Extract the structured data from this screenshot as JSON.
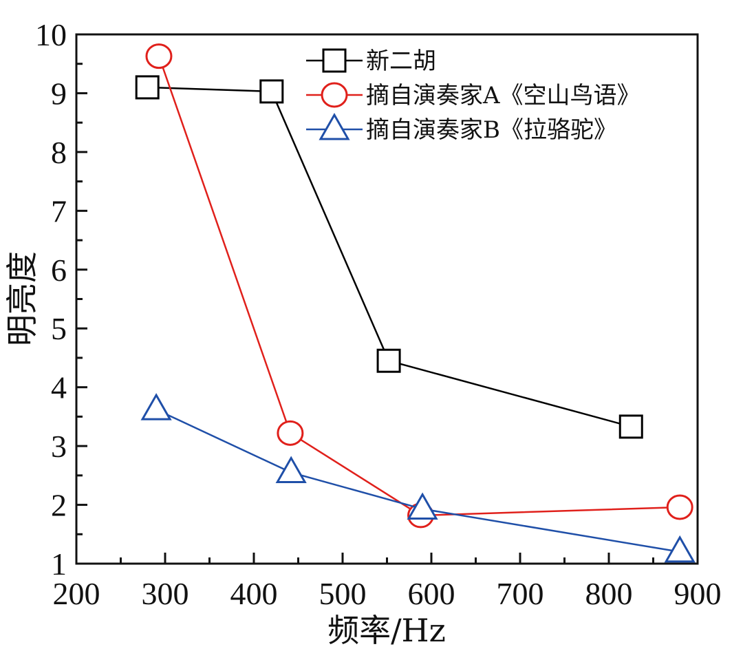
{
  "chart_data": {
    "type": "line",
    "title": "",
    "xlabel": "频率/Hz",
    "ylabel": "明亮度",
    "xlim": [
      200,
      900
    ],
    "ylim": [
      1,
      10
    ],
    "xticks": [
      200,
      300,
      400,
      500,
      600,
      700,
      800,
      900
    ],
    "yticks": [
      1,
      2,
      3,
      4,
      5,
      6,
      7,
      8,
      9,
      10
    ],
    "grid": false,
    "legend_position": "top-right",
    "series": [
      {
        "name": "新二胡",
        "marker": "square",
        "color": "#000000",
        "points": [
          [
            280,
            9.1
          ],
          [
            420,
            9.03
          ],
          [
            552,
            4.45
          ],
          [
            825,
            3.33
          ]
        ]
      },
      {
        "name": "摘自演奏家A《空山鸟语》",
        "marker": "circle",
        "color": "#e0201b",
        "points": [
          [
            293,
            9.63
          ],
          [
            441,
            3.22
          ],
          [
            588,
            1.82
          ],
          [
            880,
            1.96
          ]
        ]
      },
      {
        "name": "摘自演奏家B《拉骆驼》",
        "marker": "triangle",
        "color": "#1f4fa8",
        "points": [
          [
            290,
            3.62
          ],
          [
            442,
            2.55
          ],
          [
            590,
            1.93
          ],
          [
            880,
            1.2
          ]
        ]
      }
    ]
  }
}
